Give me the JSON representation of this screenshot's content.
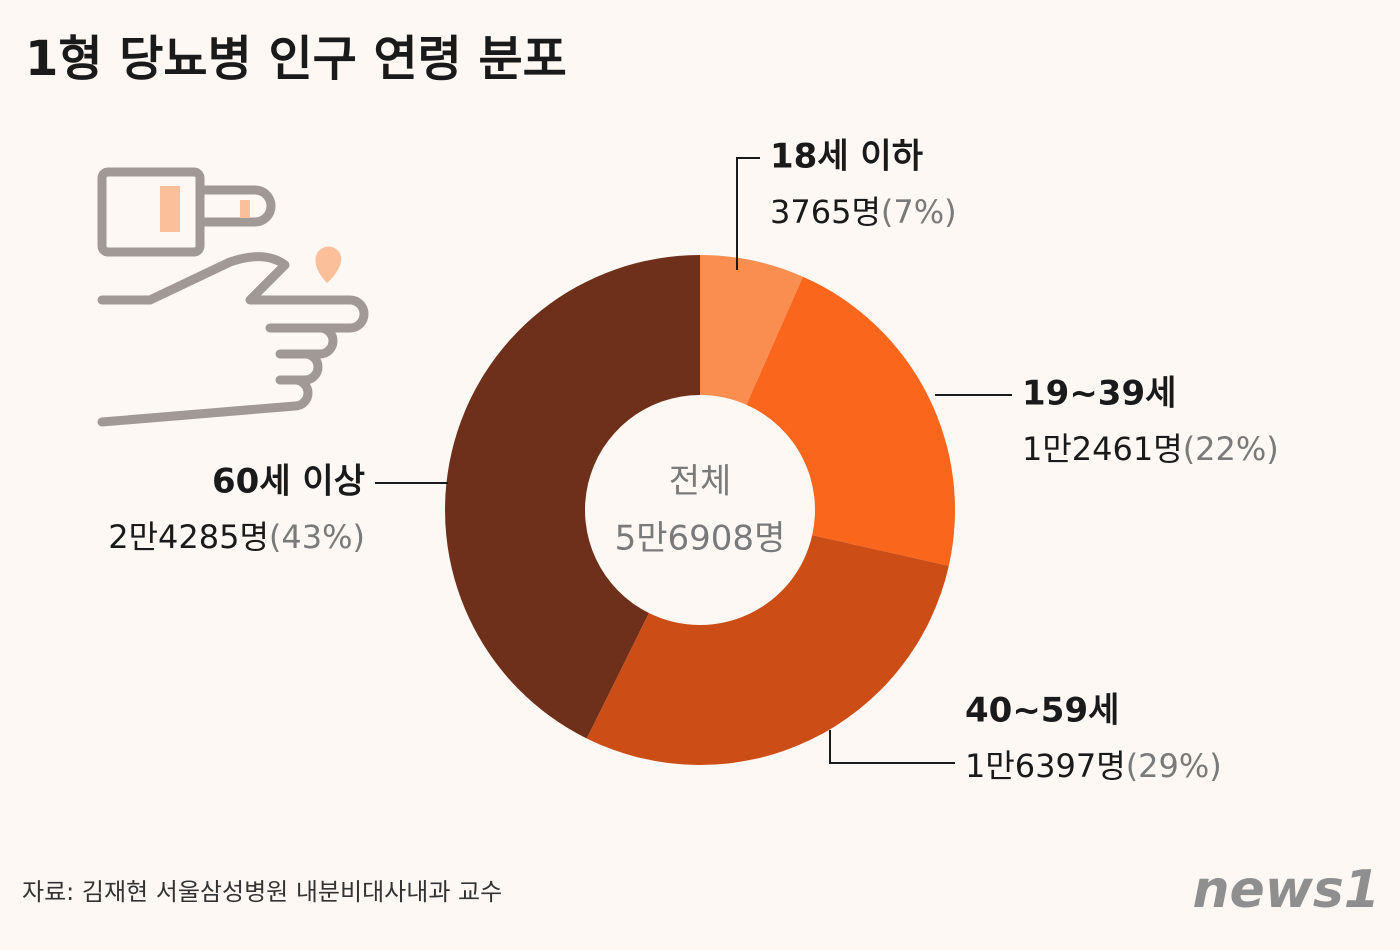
{
  "chart_data": {
    "type": "donut",
    "title": "1형 당뇨병 인구 연령 분포",
    "categories": [
      "18세 이하",
      "19~39세",
      "40~59세",
      "60세 이상"
    ],
    "values": [
      3765,
      12461,
      16397,
      24285
    ],
    "value_labels": [
      "3765명",
      "1만2461명",
      "1만6397명",
      "2만4285명"
    ],
    "percentages": [
      7,
      22,
      29,
      43
    ],
    "percentage_labels": [
      "(7%)",
      "(22%)",
      "(29%)",
      "(43%)"
    ],
    "colors": [
      "#fa8e50",
      "#f9661c",
      "#cd4d17",
      "#6f301b"
    ],
    "center_label": "전체",
    "total": 56908,
    "total_label": "5만6908명",
    "source": "자료: 김재현 서울삼성병원 내분비대사내과 교수",
    "logo": "news1"
  }
}
